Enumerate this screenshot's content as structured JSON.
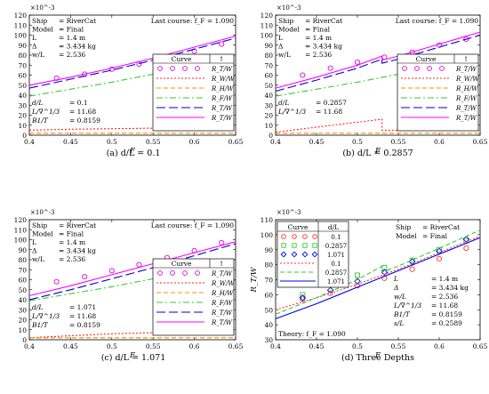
{
  "figure": {
    "panels": [
      {
        "caption": "(a) d/L = 0.1",
        "info": [
          [
            "Ship",
            "= RiverCat"
          ],
          [
            "Model",
            "= Final"
          ],
          [
            "L",
            "= 1.4 m"
          ],
          [
            "Δ",
            "= 3.434 kg"
          ],
          [
            "w/L",
            "= 2.536"
          ]
        ],
        "last_course": "Last course: f_F = 1.090",
        "params": [
          [
            "d/L",
            "= 0.1"
          ],
          [
            "L/∇^1/3",
            "= 11.68"
          ],
          [
            "B1/T",
            "= 0.8159"
          ]
        ],
        "legend_header": [
          "Curve",
          "↑"
        ],
        "legend_items": [
          "R_T/W",
          "R_W/W",
          "R_H/W",
          "R_F/W",
          "R_T/W",
          "R_T/W"
        ],
        "xlabel": "F",
        "multiplier": "×10^-3"
      },
      {
        "caption": "(b) d/L = 0.2857",
        "info": [
          [
            "Ship",
            "= RiverCat"
          ],
          [
            "Model",
            "= Final"
          ],
          [
            "L",
            "= 1.4 m"
          ],
          [
            "Δ",
            "= 3.434 kg"
          ],
          [
            "w/L",
            "= 2.536"
          ]
        ],
        "last_course": "Last course: f_F = 1.090",
        "params": [
          [
            "d/L",
            "= 0.2857"
          ],
          [
            "L/∇^1/3",
            "= 11.68"
          ]
        ],
        "legend_header": [
          "Curve",
          "↑"
        ],
        "legend_items": [
          "R_T/W",
          "R_W/W",
          "R_H/W",
          "R_F/W",
          "R_T/W",
          "R_T/W"
        ],
        "xlabel": "F",
        "multiplier": "×10^-3"
      },
      {
        "caption": "(c) d/L = 1.071",
        "info": [
          [
            "Ship",
            "= RiverCat"
          ],
          [
            "Model",
            "= Final"
          ],
          [
            "L",
            "= 1.4 m"
          ],
          [
            "Δ",
            "= 3.434 kg"
          ],
          [
            "w/L",
            "= 2.536"
          ]
        ],
        "last_course": "Last course: f_F = 1.090",
        "params": [
          [
            "d/L",
            "= 1.071"
          ],
          [
            "L/∇^1/3",
            "= 11.68"
          ],
          [
            "B1/T",
            "= 0.8159"
          ]
        ],
        "legend_header": [
          "Curve",
          "↑"
        ],
        "legend_items": [
          "R_T/W",
          "R_W/W",
          "R_H/W",
          "R_F/W",
          "R_T/W",
          "R_T/W"
        ],
        "xlabel": "F",
        "multiplier": "×10^-3"
      },
      {
        "caption": "(d) Three Depths",
        "info": [
          [
            "Ship",
            "= RiverCat"
          ],
          [
            "Model",
            "= Final"
          ]
        ],
        "legend_header": [
          "Curve",
          "d/L"
        ],
        "legend_items": [
          "0.1",
          "0.2857",
          "1.071",
          "0.1",
          "0.2857",
          "1.071"
        ],
        "params": [
          [
            "L",
            "= 1.4 m"
          ],
          [
            "Δ",
            "= 3.434 kg"
          ],
          [
            "w/L",
            "= 2.536"
          ],
          [
            "L/∇^1/3",
            "= 11.68"
          ],
          [
            "B1/T",
            "= 0.8159"
          ],
          [
            "s/L",
            "= 0.2589"
          ]
        ],
        "theory": "Theory: f_F = 1.090",
        "xlabel": "F",
        "ylabel": "R_T/W",
        "multiplier": "×10^-3"
      }
    ]
  },
  "chart_data": [
    {
      "type": "line",
      "title": "",
      "xlabel": "F",
      "ylabel": "",
      "xlim": [
        0.4,
        0.65
      ],
      "ylim": [
        0,
        120
      ],
      "xticks": [
        0.4,
        0.45,
        0.5,
        0.55,
        0.6,
        0.65
      ],
      "yticks": [
        0,
        10,
        20,
        30,
        40,
        50,
        60,
        70,
        80,
        90,
        100,
        110,
        120
      ],
      "series": [
        {
          "name": "R_T/W",
          "style": "markers",
          "color": "#e000e0",
          "x": [
            0.433,
            0.467,
            0.5,
            0.533,
            0.567,
            0.6,
            0.633
          ],
          "y": [
            57,
            61,
            66,
            71,
            77,
            84,
            91
          ]
        },
        {
          "name": "R_W/W",
          "style": "dotted",
          "color": "#ff2020",
          "x": [
            0.4,
            0.45,
            0.5,
            0.55,
            0.6,
            0.65
          ],
          "y": [
            5,
            6,
            6.5,
            7,
            7,
            7
          ]
        },
        {
          "name": "R_H/W",
          "style": "dashed",
          "color": "#ff8c00",
          "x": [
            0.4,
            0.45,
            0.5,
            0.55,
            0.6,
            0.65
          ],
          "y": [
            2,
            2,
            2,
            2,
            2,
            2
          ]
        },
        {
          "name": "R_F/W",
          "style": "dashdot",
          "color": "#33cc33",
          "x": [
            0.4,
            0.45,
            0.5,
            0.55,
            0.6,
            0.65
          ],
          "y": [
            39,
            46,
            53,
            61,
            69,
            77
          ]
        },
        {
          "name": "R_T/W",
          "style": "longdash",
          "color": "#0000cc",
          "x": [
            0.4,
            0.45,
            0.5,
            0.55,
            0.6,
            0.65
          ],
          "y": [
            47,
            56,
            65,
            75,
            86,
            97
          ]
        },
        {
          "name": "R_T/W",
          "style": "solid",
          "color": "#ff00ff",
          "x": [
            0.4,
            0.45,
            0.5,
            0.55,
            0.6,
            0.65
          ],
          "y": [
            50,
            58,
            67,
            77,
            88,
            99
          ]
        }
      ]
    },
    {
      "type": "line",
      "title": "",
      "xlabel": "F",
      "ylabel": "",
      "xlim": [
        0.4,
        0.65
      ],
      "ylim": [
        0,
        120
      ],
      "xticks": [
        0.4,
        0.45,
        0.5,
        0.55,
        0.6,
        0.65
      ],
      "yticks": [
        0,
        10,
        20,
        30,
        40,
        50,
        60,
        70,
        80,
        90,
        100,
        110,
        120
      ],
      "series": [
        {
          "name": "R_T/W",
          "style": "markers",
          "color": "#e000e0",
          "x": [
            0.433,
            0.467,
            0.5,
            0.533,
            0.567,
            0.6,
            0.633
          ],
          "y": [
            60,
            67,
            73,
            78,
            83,
            90,
            96
          ]
        },
        {
          "name": "R_W/W",
          "style": "dotted",
          "color": "#ff2020",
          "x": [
            0.4,
            0.45,
            0.5,
            0.53,
            0.5301,
            0.55,
            0.6,
            0.65
          ],
          "y": [
            3,
            8,
            13,
            16,
            5,
            5,
            5,
            5
          ]
        },
        {
          "name": "R_H/W",
          "style": "dashed",
          "color": "#ff8c00",
          "x": [
            0.4,
            0.45,
            0.5,
            0.55,
            0.6,
            0.65
          ],
          "y": [
            2,
            2,
            2,
            2,
            2,
            2
          ]
        },
        {
          "name": "R_F/W",
          "style": "dashdot",
          "color": "#33cc33",
          "x": [
            0.4,
            0.45,
            0.5,
            0.55,
            0.6,
            0.65
          ],
          "y": [
            39,
            46,
            53,
            61,
            69,
            77
          ]
        },
        {
          "name": "R_T/W",
          "style": "longdash",
          "color": "#0000cc",
          "x": [
            0.4,
            0.45,
            0.5,
            0.53,
            0.5301,
            0.55,
            0.6,
            0.65
          ],
          "y": [
            44,
            55,
            67,
            76,
            72,
            76,
            88,
            100
          ]
        },
        {
          "name": "R_T/W",
          "style": "solid",
          "color": "#ff00ff",
          "x": [
            0.4,
            0.45,
            0.5,
            0.53,
            0.5301,
            0.55,
            0.6,
            0.65
          ],
          "y": [
            47,
            58,
            70,
            79,
            75,
            79,
            91,
            103
          ]
        }
      ]
    },
    {
      "type": "line",
      "title": "",
      "xlabel": "F",
      "ylabel": "",
      "xlim": [
        0.4,
        0.65
      ],
      "ylim": [
        0,
        120
      ],
      "xticks": [
        0.4,
        0.45,
        0.5,
        0.55,
        0.6,
        0.65
      ],
      "yticks": [
        0,
        10,
        20,
        30,
        40,
        50,
        60,
        70,
        80,
        90,
        100,
        110,
        120
      ],
      "series": [
        {
          "name": "R_T/W",
          "style": "markers",
          "color": "#e000e0",
          "x": [
            0.433,
            0.467,
            0.5,
            0.533,
            0.567,
            0.6,
            0.633
          ],
          "y": [
            58,
            63,
            69,
            75,
            82,
            89,
            97
          ]
        },
        {
          "name": "R_W/W",
          "style": "dotted",
          "color": "#ff2020",
          "x": [
            0.4,
            0.45,
            0.5,
            0.55,
            0.6,
            0.65
          ],
          "y": [
            2,
            4,
            6,
            7,
            8,
            8
          ]
        },
        {
          "name": "R_H/W",
          "style": "dashed",
          "color": "#ff8c00",
          "x": [
            0.4,
            0.45,
            0.5,
            0.55,
            0.6,
            0.65
          ],
          "y": [
            2,
            2,
            2,
            2,
            2,
            2
          ]
        },
        {
          "name": "R_F/W",
          "style": "dashdot",
          "color": "#33cc33",
          "x": [
            0.4,
            0.45,
            0.5,
            0.55,
            0.6,
            0.65
          ],
          "y": [
            39,
            46,
            53,
            61,
            69,
            77
          ]
        },
        {
          "name": "R_T/W",
          "style": "longdash",
          "color": "#0000cc",
          "x": [
            0.4,
            0.45,
            0.5,
            0.55,
            0.6,
            0.65
          ],
          "y": [
            40,
            50,
            61,
            72,
            84,
            96
          ]
        },
        {
          "name": "R_T/W",
          "style": "solid",
          "color": "#ff00ff",
          "x": [
            0.4,
            0.45,
            0.5,
            0.55,
            0.6,
            0.65
          ],
          "y": [
            44,
            54,
            65,
            76,
            87,
            98
          ]
        }
      ]
    },
    {
      "type": "line",
      "title": "",
      "xlabel": "F",
      "ylabel": "R_T/W",
      "xlim": [
        0.4,
        0.65
      ],
      "ylim": [
        30,
        110
      ],
      "xticks": [
        0.4,
        0.45,
        0.5,
        0.55,
        0.6,
        0.65
      ],
      "yticks": [
        30,
        40,
        50,
        60,
        70,
        80,
        90,
        100,
        110
      ],
      "series": [
        {
          "name": "0.1",
          "style": "circle",
          "color": "#ff3030",
          "x": [
            0.433,
            0.467,
            0.5,
            0.533,
            0.567,
            0.6,
            0.633
          ],
          "y": [
            57,
            61,
            66,
            71,
            77,
            84,
            91
          ]
        },
        {
          "name": "0.2857",
          "style": "square",
          "color": "#33cc33",
          "x": [
            0.433,
            0.467,
            0.5,
            0.533,
            0.567,
            0.6,
            0.633
          ],
          "y": [
            60,
            67,
            73,
            78,
            83,
            90,
            96
          ]
        },
        {
          "name": "1.071",
          "style": "diamond",
          "color": "#0000ee",
          "x": [
            0.433,
            0.467,
            0.5,
            0.533,
            0.567,
            0.6,
            0.633
          ],
          "y": [
            58,
            63,
            69,
            75,
            82,
            89,
            97
          ]
        },
        {
          "name": "0.1",
          "style": "dotted",
          "color": "#ff3030",
          "x": [
            0.4,
            0.45,
            0.5,
            0.55,
            0.6,
            0.65
          ],
          "y": [
            50,
            58,
            67,
            77,
            88,
            99
          ]
        },
        {
          "name": "0.2857",
          "style": "dashed",
          "color": "#33cc33",
          "x": [
            0.4,
            0.45,
            0.5,
            0.53,
            0.5301,
            0.55,
            0.6,
            0.65
          ],
          "y": [
            47,
            58,
            70,
            79,
            75,
            79,
            91,
            103
          ]
        },
        {
          "name": "1.071",
          "style": "solid",
          "color": "#0000ee",
          "x": [
            0.4,
            0.45,
            0.5,
            0.55,
            0.6,
            0.65
          ],
          "y": [
            44,
            54,
            65,
            76,
            87,
            98
          ]
        }
      ]
    }
  ]
}
